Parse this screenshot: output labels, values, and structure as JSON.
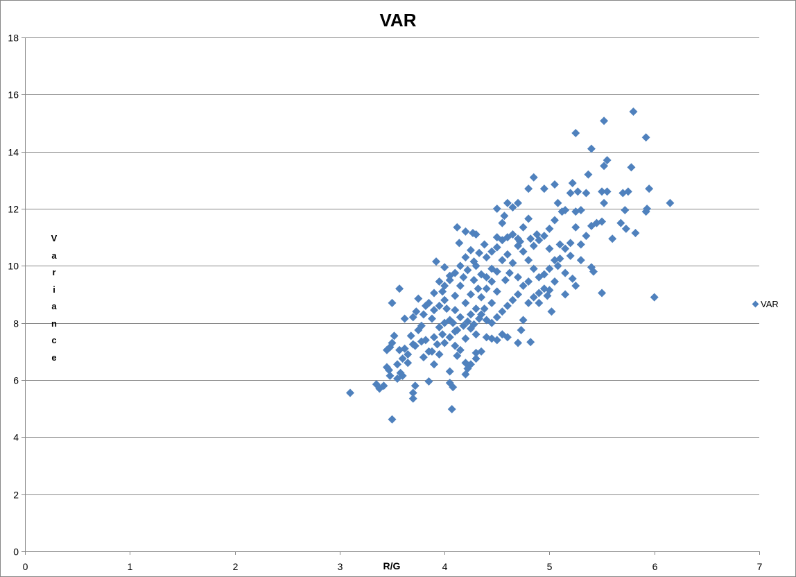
{
  "chart_data": {
    "type": "scatter",
    "title": "VAR",
    "xlabel": "R/G",
    "ylabel": "Variance",
    "xlim": [
      0,
      7
    ],
    "ylim": [
      0,
      18
    ],
    "x_ticks": [
      0,
      1,
      2,
      3,
      4,
      5,
      6,
      7
    ],
    "y_ticks": [
      0,
      2,
      4,
      6,
      8,
      10,
      12,
      14,
      16,
      18
    ],
    "grid": {
      "horizontal": true,
      "vertical": false
    },
    "legend": {
      "position": "right",
      "entries": [
        "VAR"
      ]
    },
    "marker": "diamond",
    "series": [
      {
        "name": "VAR",
        "color": "#4f81bd",
        "points": [
          [
            3.1,
            5.55
          ],
          [
            3.5,
            4.62
          ],
          [
            4.07,
            4.98
          ],
          [
            3.35,
            5.85
          ],
          [
            3.38,
            5.7
          ],
          [
            3.42,
            5.8
          ],
          [
            3.7,
            5.35
          ],
          [
            3.7,
            5.55
          ],
          [
            3.72,
            5.8
          ],
          [
            3.58,
            6.25
          ],
          [
            3.55,
            6.05
          ],
          [
            3.6,
            6.15
          ],
          [
            3.45,
            6.45
          ],
          [
            3.47,
            6.35
          ],
          [
            3.48,
            6.15
          ],
          [
            3.65,
            6.6
          ],
          [
            3.85,
            5.95
          ],
          [
            4.05,
            5.9
          ],
          [
            4.08,
            5.75
          ],
          [
            4.05,
            6.3
          ],
          [
            4.2,
            6.2
          ],
          [
            4.22,
            6.4
          ],
          [
            3.45,
            7.05
          ],
          [
            3.48,
            7.15
          ],
          [
            3.5,
            7.3
          ],
          [
            3.52,
            7.55
          ],
          [
            3.57,
            7.05
          ],
          [
            3.62,
            7.1
          ],
          [
            3.7,
            7.25
          ],
          [
            3.72,
            7.2
          ],
          [
            3.75,
            7.75
          ],
          [
            3.7,
            8.2
          ],
          [
            3.73,
            8.4
          ],
          [
            3.75,
            8.85
          ],
          [
            3.5,
            8.7
          ],
          [
            3.57,
            9.2
          ],
          [
            3.82,
            8.6
          ],
          [
            3.85,
            8.7
          ],
          [
            3.88,
            8.15
          ],
          [
            3.92,
            10.15
          ],
          [
            3.95,
            9.45
          ],
          [
            3.98,
            9.1
          ],
          [
            4.0,
            9.95
          ],
          [
            4.05,
            9.65
          ],
          [
            4.12,
            11.35
          ],
          [
            4.14,
            10.8
          ],
          [
            4.2,
            11.2
          ],
          [
            4.27,
            11.15
          ],
          [
            4.3,
            11.1
          ],
          [
            4.15,
            9.3
          ],
          [
            4.1,
            8.95
          ],
          [
            4.15,
            8.2
          ],
          [
            4.0,
            8.0
          ],
          [
            3.95,
            7.85
          ],
          [
            3.9,
            7.5
          ],
          [
            3.85,
            7.0
          ],
          [
            3.8,
            6.8
          ],
          [
            3.9,
            6.55
          ],
          [
            3.95,
            6.9
          ],
          [
            4.0,
            7.3
          ],
          [
            4.05,
            7.5
          ],
          [
            4.1,
            7.7
          ],
          [
            4.1,
            7.2
          ],
          [
            4.15,
            7.05
          ],
          [
            4.2,
            7.45
          ],
          [
            4.25,
            7.8
          ],
          [
            4.25,
            8.3
          ],
          [
            4.3,
            8.5
          ],
          [
            4.3,
            7.6
          ],
          [
            4.35,
            7.0
          ],
          [
            4.3,
            6.75
          ],
          [
            4.4,
            7.5
          ],
          [
            4.45,
            7.45
          ],
          [
            4.5,
            7.4
          ],
          [
            4.55,
            7.6
          ],
          [
            4.6,
            7.5
          ],
          [
            4.7,
            7.3
          ],
          [
            4.82,
            7.33
          ],
          [
            4.75,
            8.1
          ],
          [
            4.73,
            7.75
          ],
          [
            4.35,
            8.9
          ],
          [
            4.4,
            9.2
          ],
          [
            4.45,
            9.45
          ],
          [
            4.5,
            9.8
          ],
          [
            4.35,
            9.7
          ],
          [
            4.3,
            10.0
          ],
          [
            4.4,
            10.3
          ],
          [
            4.45,
            10.5
          ],
          [
            4.5,
            10.65
          ],
          [
            4.55,
            10.9
          ],
          [
            4.5,
            11.0
          ],
          [
            4.55,
            11.5
          ],
          [
            4.57,
            11.75
          ],
          [
            4.6,
            12.2
          ],
          [
            4.65,
            12.05
          ],
          [
            4.7,
            12.2
          ],
          [
            4.5,
            12.0
          ],
          [
            4.65,
            11.1
          ],
          [
            4.7,
            10.95
          ],
          [
            4.75,
            11.35
          ],
          [
            4.8,
            11.65
          ],
          [
            4.85,
            13.1
          ],
          [
            4.8,
            12.7
          ],
          [
            4.95,
            12.7
          ],
          [
            5.05,
            12.85
          ],
          [
            5.08,
            12.2
          ],
          [
            5.15,
            11.95
          ],
          [
            5.2,
            12.55
          ],
          [
            5.22,
            12.9
          ],
          [
            5.27,
            12.6
          ],
          [
            5.25,
            11.9
          ],
          [
            5.3,
            11.95
          ],
          [
            5.35,
            12.55
          ],
          [
            5.25,
            14.65
          ],
          [
            5.37,
            13.2
          ],
          [
            5.4,
            14.1
          ],
          [
            5.52,
            15.08
          ],
          [
            5.8,
            15.4
          ],
          [
            5.92,
            14.5
          ],
          [
            5.52,
            13.5
          ],
          [
            5.55,
            13.7
          ],
          [
            5.5,
            12.6
          ],
          [
            5.55,
            12.6
          ],
          [
            5.52,
            12.2
          ],
          [
            5.7,
            12.55
          ],
          [
            5.75,
            12.6
          ],
          [
            5.78,
            13.45
          ],
          [
            5.95,
            12.7
          ],
          [
            6.15,
            12.2
          ],
          [
            5.92,
            11.9
          ],
          [
            5.93,
            12.0
          ],
          [
            5.82,
            11.15
          ],
          [
            5.73,
            11.3
          ],
          [
            5.68,
            11.5
          ],
          [
            5.6,
            10.95
          ],
          [
            5.72,
            11.95
          ],
          [
            5.5,
            11.55
          ],
          [
            5.45,
            11.5
          ],
          [
            5.4,
            11.4
          ],
          [
            5.35,
            11.05
          ],
          [
            5.3,
            10.75
          ],
          [
            5.25,
            11.35
          ],
          [
            5.2,
            10.8
          ],
          [
            5.15,
            10.6
          ],
          [
            5.1,
            10.75
          ],
          [
            5.05,
            10.2
          ],
          [
            5.1,
            10.25
          ],
          [
            5.0,
            9.9
          ],
          [
            4.95,
            9.7
          ],
          [
            5.4,
            9.95
          ],
          [
            5.42,
            9.8
          ],
          [
            5.22,
            9.55
          ],
          [
            5.25,
            9.3
          ],
          [
            5.15,
            9.0
          ],
          [
            5.5,
            9.05
          ],
          [
            6.0,
            8.9
          ],
          [
            5.02,
            8.4
          ],
          [
            4.95,
            9.2
          ],
          [
            4.9,
            9.6
          ],
          [
            4.85,
            9.9
          ],
          [
            4.8,
            10.2
          ],
          [
            4.75,
            10.5
          ],
          [
            4.7,
            10.7
          ],
          [
            4.85,
            10.7
          ],
          [
            4.9,
            10.9
          ],
          [
            4.95,
            11.05
          ],
          [
            4.88,
            11.1
          ],
          [
            4.82,
            10.95
          ],
          [
            4.75,
            9.3
          ],
          [
            4.7,
            9.0
          ],
          [
            4.65,
            8.8
          ],
          [
            4.6,
            8.6
          ],
          [
            4.55,
            8.4
          ],
          [
            4.5,
            8.2
          ],
          [
            4.45,
            8.0
          ],
          [
            4.4,
            8.1
          ],
          [
            4.35,
            8.3
          ],
          [
            4.25,
            9.0
          ],
          [
            4.2,
            8.7
          ],
          [
            4.18,
            9.6
          ],
          [
            4.22,
            9.85
          ],
          [
            4.28,
            10.15
          ],
          [
            4.33,
            10.45
          ],
          [
            4.38,
            10.75
          ],
          [
            4.4,
            9.6
          ],
          [
            4.45,
            9.9
          ],
          [
            4.55,
            10.2
          ],
          [
            4.6,
            10.4
          ],
          [
            4.65,
            10.1
          ],
          [
            4.62,
            9.75
          ],
          [
            4.58,
            9.5
          ],
          [
            4.8,
            8.7
          ],
          [
            4.85,
            8.9
          ],
          [
            4.9,
            9.05
          ],
          [
            4.8,
            9.45
          ],
          [
            4.7,
            9.6
          ],
          [
            4.5,
            9.1
          ],
          [
            4.45,
            8.7
          ],
          [
            4.38,
            8.5
          ],
          [
            4.32,
            9.2
          ],
          [
            4.28,
            9.5
          ],
          [
            4.1,
            8.45
          ],
          [
            4.05,
            8.1
          ],
          [
            3.98,
            7.6
          ],
          [
            3.93,
            7.25
          ],
          [
            3.88,
            7.0
          ],
          [
            3.82,
            7.4
          ],
          [
            3.78,
            7.9
          ],
          [
            3.8,
            8.3
          ],
          [
            3.9,
            8.45
          ],
          [
            3.95,
            8.6
          ],
          [
            4.0,
            8.8
          ],
          [
            4.02,
            8.5
          ],
          [
            4.08,
            8.0
          ],
          [
            4.12,
            7.75
          ],
          [
            4.18,
            7.9
          ],
          [
            4.22,
            8.05
          ],
          [
            4.28,
            7.95
          ],
          [
            4.33,
            8.15
          ],
          [
            4.12,
            6.85
          ],
          [
            4.2,
            6.6
          ],
          [
            4.25,
            6.55
          ],
          [
            4.3,
            6.95
          ],
          [
            3.6,
            6.75
          ],
          [
            3.55,
            6.55
          ],
          [
            3.65,
            6.9
          ],
          [
            3.68,
            7.55
          ],
          [
            3.78,
            7.35
          ],
          [
            3.62,
            8.15
          ],
          [
            3.9,
            9.05
          ],
          [
            4.0,
            9.3
          ],
          [
            4.05,
            9.5
          ],
          [
            4.1,
            9.75
          ],
          [
            4.15,
            10.0
          ],
          [
            4.2,
            10.3
          ],
          [
            4.25,
            10.55
          ],
          [
            4.6,
            11.0
          ],
          [
            4.72,
            10.85
          ],
          [
            5.0,
            11.3
          ],
          [
            5.05,
            11.6
          ],
          [
            5.12,
            11.9
          ],
          [
            5.0,
            10.6
          ],
          [
            5.08,
            10.0
          ],
          [
            5.15,
            9.75
          ],
          [
            5.2,
            10.35
          ],
          [
            5.3,
            10.2
          ],
          [
            5.05,
            9.45
          ],
          [
            5.0,
            9.15
          ],
          [
            4.98,
            8.95
          ],
          [
            4.9,
            8.7
          ]
        ]
      }
    ]
  },
  "chart": {
    "title": "VAR",
    "x_axis_title": "R/G",
    "y_axis_title_letters": [
      "V",
      "a",
      "r",
      "i",
      "a",
      "n",
      "c",
      "e"
    ],
    "legend_label": "VAR"
  }
}
